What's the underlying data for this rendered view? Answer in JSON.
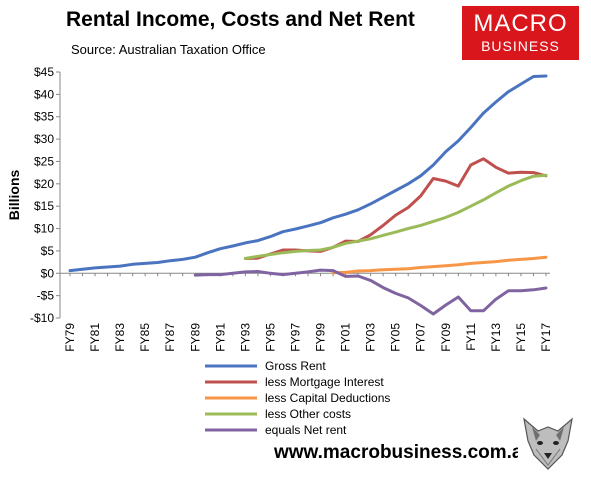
{
  "header": {
    "title": "Rental Income, Costs and Net Rent",
    "subtitle": "Source: Australian Taxation Office"
  },
  "logo": {
    "line1": "MACRO",
    "line2": "BUSINESS",
    "color": "#d9161c"
  },
  "footer": {
    "url": "www.macrobusiness.com.au"
  },
  "colors": {
    "gross": "#4a74c0",
    "mortgage": "#c0504d",
    "capital": "#f79646",
    "other": "#9bbb59",
    "net": "#8064a2"
  },
  "chart_data": {
    "type": "line",
    "ylabel": "Billions",
    "ylim": [
      -10,
      45
    ],
    "yticks": [
      -10,
      -5,
      0,
      5,
      10,
      15,
      20,
      25,
      30,
      35,
      40,
      45
    ],
    "ytick_labels": [
      "-$10",
      "-$5",
      "$0",
      "$5",
      "$10",
      "$15",
      "$20",
      "$25",
      "$30",
      "$35",
      "$40",
      "$45"
    ],
    "grid": false,
    "legend": "bottom",
    "x": [
      "FY79",
      "FY80",
      "FY81",
      "FY82",
      "FY83",
      "FY84",
      "FY85",
      "FY86",
      "FY87",
      "FY88",
      "FY89",
      "FY90",
      "FY91",
      "FY92",
      "FY93",
      "FY94",
      "FY95",
      "FY96",
      "FY97",
      "FY98",
      "FY99",
      "FY00",
      "FY01",
      "FY02",
      "FY03",
      "FY04",
      "FY05",
      "FY06",
      "FY07",
      "FY08",
      "FY09",
      "FY10",
      "FY11",
      "FY12",
      "FY13",
      "FY14",
      "FY15",
      "FY16",
      "FY17"
    ],
    "xtick_labels": [
      "FY79",
      "FY81",
      "FY83",
      "FY85",
      "FY87",
      "FY89",
      "FY91",
      "FY93",
      "FY95",
      "FY97",
      "FY99",
      "FY01",
      "FY03",
      "FY05",
      "FY07",
      "FY09",
      "FY11",
      "FY13",
      "FY15",
      "FY17"
    ],
    "series": [
      {
        "name": "Gross Rent",
        "color_key": "gross",
        "values": [
          0.6,
          0.9,
          1.2,
          1.4,
          1.6,
          2.0,
          2.2,
          2.4,
          2.8,
          3.1,
          3.6,
          4.6,
          5.5,
          6.1,
          6.8,
          7.3,
          8.2,
          9.3,
          9.9,
          10.6,
          11.3,
          12.4,
          13.2,
          14.2,
          15.5,
          17.0,
          18.5,
          20.0,
          21.8,
          24.2,
          27.2,
          29.6,
          32.6,
          35.8,
          38.3,
          40.6,
          42.3,
          44.0,
          44.1
        ]
      },
      {
        "name": "less Mortgage Interest",
        "color_key": "mortgage",
        "values": [
          null,
          null,
          null,
          null,
          null,
          null,
          null,
          null,
          null,
          null,
          null,
          null,
          null,
          null,
          3.3,
          3.4,
          4.3,
          5.2,
          5.2,
          5.0,
          4.9,
          5.8,
          7.2,
          7.1,
          8.6,
          10.7,
          13.0,
          14.7,
          17.3,
          21.2,
          20.6,
          19.5,
          24.2,
          25.6,
          23.7,
          22.4,
          22.6,
          22.5,
          21.8
        ]
      },
      {
        "name": "less Capital Deductions",
        "color_key": "capital",
        "values": [
          null,
          null,
          null,
          null,
          null,
          null,
          null,
          null,
          null,
          null,
          null,
          null,
          null,
          null,
          null,
          null,
          null,
          null,
          null,
          null,
          null,
          0.1,
          0.2,
          0.5,
          0.6,
          0.8,
          0.9,
          1.0,
          1.3,
          1.5,
          1.7,
          1.9,
          2.2,
          2.4,
          2.6,
          2.9,
          3.1,
          3.3,
          3.6
        ]
      },
      {
        "name": "less Other costs",
        "color_key": "other",
        "values": [
          null,
          null,
          null,
          null,
          null,
          null,
          null,
          null,
          null,
          null,
          null,
          null,
          null,
          null,
          3.3,
          3.8,
          4.2,
          4.6,
          4.9,
          5.1,
          5.2,
          5.8,
          6.7,
          7.2,
          7.7,
          8.5,
          9.2,
          10.0,
          10.7,
          11.6,
          12.5,
          13.6,
          15.0,
          16.4,
          18.0,
          19.5,
          20.7,
          21.7,
          21.9
        ]
      },
      {
        "name": "equals Net rent",
        "color_key": "net",
        "values": [
          null,
          null,
          null,
          null,
          null,
          null,
          null,
          null,
          null,
          null,
          -0.4,
          -0.3,
          -0.3,
          0.0,
          0.3,
          0.4,
          0.0,
          -0.3,
          0.0,
          0.3,
          0.7,
          0.6,
          -0.7,
          -0.6,
          -1.6,
          -3.2,
          -4.5,
          -5.5,
          -7.2,
          -9.1,
          -7.1,
          -5.3,
          -8.4,
          -8.4,
          -5.8,
          -3.9,
          -3.9,
          -3.7,
          -3.3
        ]
      }
    ]
  }
}
